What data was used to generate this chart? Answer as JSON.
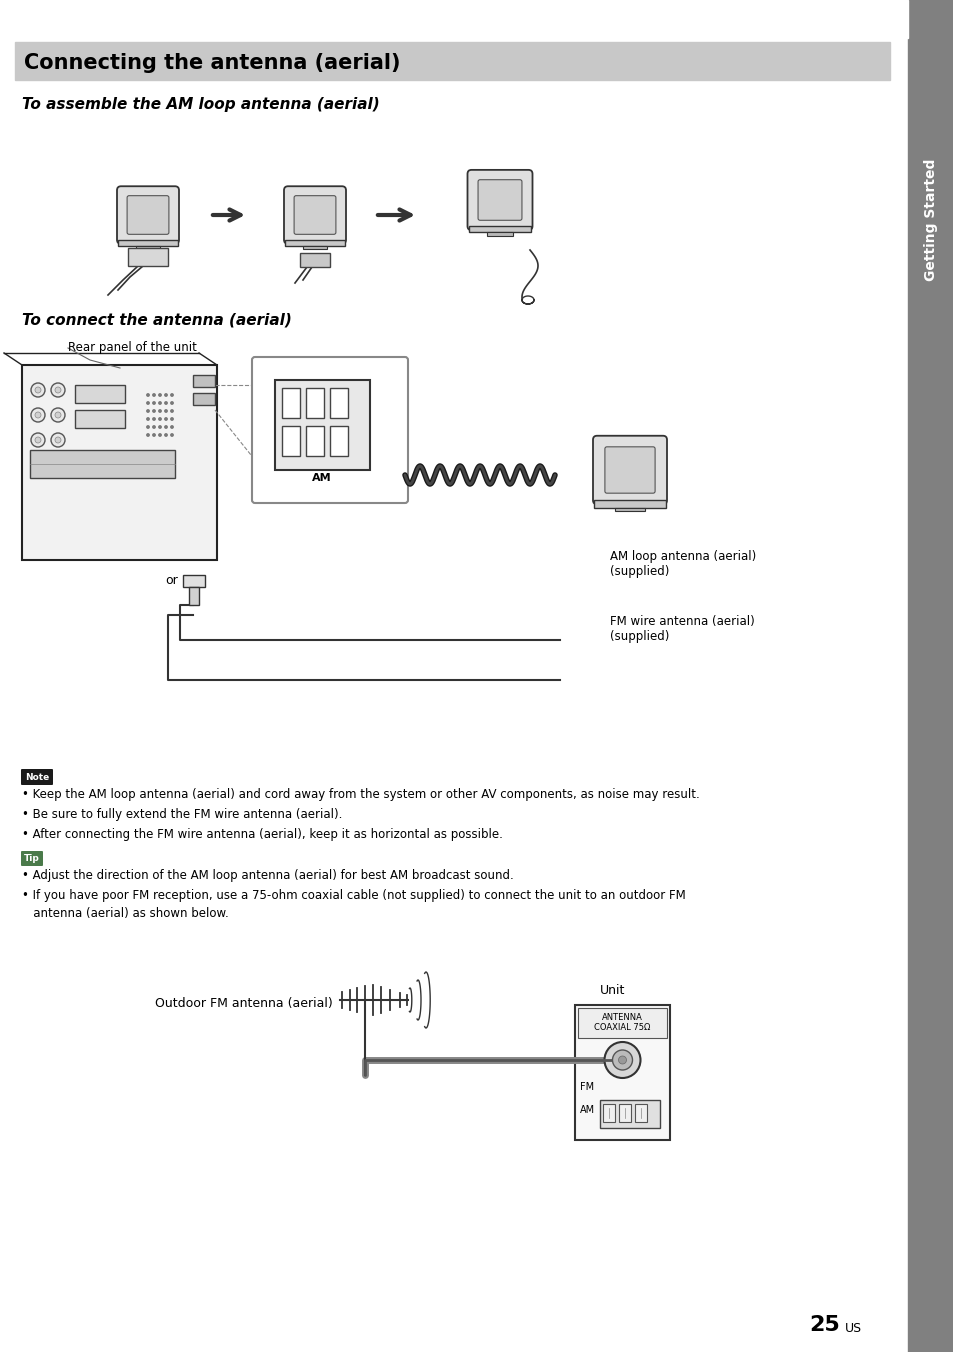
{
  "page_bg": "#ffffff",
  "sidebar_bg": "#808080",
  "header_bg": "#c8c8c8",
  "header_text": "Connecting the antenna (aerial)",
  "header_text_color": "#000000",
  "section1_title": "To assemble the AM loop antenna (aerial)",
  "section2_title": "To connect the antenna (aerial)",
  "note_label": "Note",
  "note_label_bg": "#1a1a1a",
  "note_label_color": "#ffffff",
  "tip_label": "Tip",
  "tip_label_bg": "#4a7a4a",
  "tip_label_color": "#ffffff",
  "note_bullets": [
    "Keep the AM loop antenna (aerial) and cord away from the system or other AV components, as noise may result.",
    "Be sure to fully extend the FM wire antenna (aerial).",
    "After connecting the FM wire antenna (aerial), keep it as horizontal as possible."
  ],
  "tip_bullets": [
    "Adjust the direction of the AM loop antenna (aerial) for best AM broadcast sound.",
    "If you have poor FM reception, use a 75-ohm coaxial cable (not supplied) to connect the unit to an outdoor FM",
    "   antenna (aerial) as shown below."
  ],
  "label_rear_panel": "Rear panel of the unit",
  "label_am_loop": "AM loop antenna (aerial)\n(supplied)",
  "label_fm_wire": "FM wire antenna (aerial)\n(supplied)",
  "label_or": "or",
  "label_outdoor_fm": "Outdoor FM antenna (aerial)",
  "label_unit": "Unit",
  "label_antenna_coaxial": "ANTENNA",
  "label_coaxial_75": "COAXIAL 75Ω",
  "label_fm": "FM",
  "label_am": "AM",
  "page_number": "25",
  "page_suffix": "US",
  "sidebar_text": "Getting Started",
  "sidebar_color": "#ffffff"
}
